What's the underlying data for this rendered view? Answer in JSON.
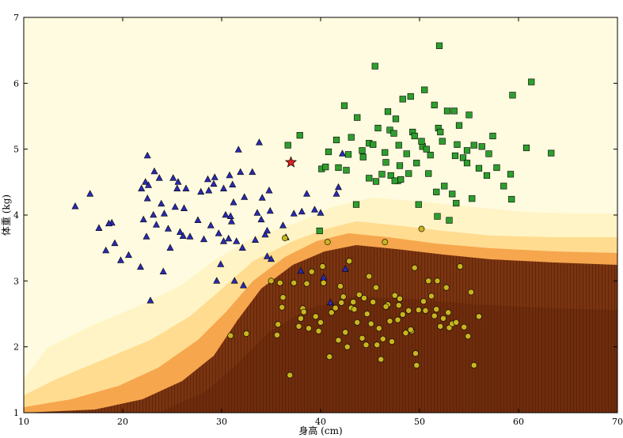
{
  "chart_data": {
    "type": "scatter",
    "title": "",
    "xlabel": "身高 (cm)",
    "ylabel": "体重 (kg)",
    "xlim": [
      10,
      70
    ],
    "ylim": [
      1,
      7
    ],
    "xticks": [
      "10",
      "20",
      "30",
      "40",
      "50",
      "60",
      "70"
    ],
    "yticks": [
      "1",
      "2",
      "3",
      "4",
      "5",
      "6",
      "7"
    ],
    "grid": false,
    "background": "decision-region heatmap: pale yellow (top-left) to dark brown (bottom-right)",
    "colors": {
      "triangle": "#2a2ab0",
      "square": "#2e9e2e",
      "circle": "#c8b420",
      "star": "#dd2222",
      "bg_light": "#fffbe0",
      "bg_dark": "#6b2a0a"
    },
    "series": [
      {
        "name": "triangle",
        "marker": "triangle",
        "points": [
          [
            15.2,
            4.13
          ],
          [
            16.7,
            4.32
          ],
          [
            17.6,
            3.8
          ],
          [
            18.3,
            3.46
          ],
          [
            18.9,
            3.88
          ],
          [
            19.2,
            3.57
          ],
          [
            19.8,
            3.31
          ],
          [
            21.8,
            3.21
          ],
          [
            21.9,
            4.4
          ],
          [
            22.1,
            3.93
          ],
          [
            22.3,
            4.5
          ],
          [
            22.5,
            4.9
          ],
          [
            22.5,
            4.25
          ],
          [
            22.4,
            3.67
          ],
          [
            22.6,
            4.45
          ],
          [
            23.2,
            4.66
          ],
          [
            23.1,
            4.0
          ],
          [
            23.7,
            4.56
          ],
          [
            23.4,
            3.85
          ],
          [
            24.2,
            4.02
          ],
          [
            24.6,
            3.79
          ],
          [
            24.8,
            3.5
          ],
          [
            25.3,
            4.12
          ],
          [
            25.5,
            4.4
          ],
          [
            25.6,
            4.5
          ],
          [
            25.8,
            3.74
          ],
          [
            26.1,
            3.68
          ],
          [
            26.4,
            4.4
          ],
          [
            26.8,
            3.67
          ],
          [
            27.6,
            3.92
          ],
          [
            27.9,
            4.35
          ],
          [
            28.2,
            3.63
          ],
          [
            28.6,
            4.54
          ],
          [
            28.9,
            3.84
          ],
          [
            29.2,
            4.47
          ],
          [
            29.7,
            3.72
          ],
          [
            29.9,
            3.25
          ],
          [
            29.5,
            3.0
          ],
          [
            30.2,
            4.4
          ],
          [
            30.4,
            4.0
          ],
          [
            30.7,
            3.64
          ],
          [
            30.8,
            4.6
          ],
          [
            31.0,
            3.9
          ],
          [
            31.1,
            4.46
          ],
          [
            31.3,
            3.0
          ],
          [
            31.5,
            3.6
          ],
          [
            31.7,
            4.99
          ],
          [
            31.9,
            4.65
          ],
          [
            32.3,
            4.27
          ],
          [
            32.1,
            3.5
          ],
          [
            33.1,
            4.65
          ],
          [
            33.4,
            3.62
          ],
          [
            33.6,
            4.03
          ],
          [
            33.8,
            5.1
          ],
          [
            34.1,
            4.26
          ],
          [
            34.4,
            3.7
          ],
          [
            34.6,
            3.37
          ],
          [
            34.8,
            4.37
          ],
          [
            34.9,
            4.06
          ],
          [
            35.0,
            3.33
          ],
          [
            36.2,
            3.84
          ],
          [
            36.5,
            3.66
          ],
          [
            37.3,
            4.02
          ],
          [
            38.1,
            4.05
          ],
          [
            38.6,
            4.32
          ],
          [
            39.4,
            4.08
          ],
          [
            40.0,
            4.03
          ],
          [
            40.3,
            3.05
          ],
          [
            41.0,
            2.67
          ],
          [
            41.6,
            4.32
          ],
          [
            41.8,
            4.42
          ],
          [
            42.2,
            4.93
          ],
          [
            42.5,
            3.18
          ],
          [
            30.9,
            3.98
          ],
          [
            29.3,
            4.57
          ],
          [
            25.1,
            4.56
          ],
          [
            38.0,
            3.15
          ],
          [
            23.9,
            4.17
          ],
          [
            34.6,
            3.76
          ],
          [
            31.2,
            4.19
          ],
          [
            32.2,
            2.93
          ],
          [
            26.2,
            4.1
          ],
          [
            28.7,
            4.37
          ],
          [
            22.8,
            2.7
          ],
          [
            20.6,
            3.39
          ],
          [
            24.1,
            3.14
          ],
          [
            18.6,
            3.87
          ],
          [
            30.2,
            3.6
          ],
          [
            34.0,
            3.93
          ]
        ]
      },
      {
        "name": "square",
        "marker": "square",
        "points": [
          [
            36.7,
            5.06
          ],
          [
            37.9,
            5.21
          ],
          [
            39.9,
            3.76
          ],
          [
            40.1,
            4.7
          ],
          [
            40.5,
            4.73
          ],
          [
            40.8,
            4.96
          ],
          [
            41.6,
            5.14
          ],
          [
            41.8,
            4.72
          ],
          [
            42.4,
            5.66
          ],
          [
            42.6,
            4.68
          ],
          [
            42.8,
            4.92
          ],
          [
            43.1,
            5.18
          ],
          [
            43.6,
            4.16
          ],
          [
            44.2,
            4.98
          ],
          [
            44.3,
            4.88
          ],
          [
            44.9,
            4.56
          ],
          [
            44.9,
            5.09
          ],
          [
            45.3,
            5.07
          ],
          [
            45.5,
            6.26
          ],
          [
            45.6,
            4.51
          ],
          [
            45.8,
            5.32
          ],
          [
            46.2,
            4.62
          ],
          [
            46.6,
            4.8
          ],
          [
            46.8,
            5.57
          ],
          [
            47.0,
            5.29
          ],
          [
            47.1,
            4.6
          ],
          [
            47.4,
            5.24
          ],
          [
            47.6,
            5.46
          ],
          [
            47.8,
            4.52
          ],
          [
            47.9,
            5.06
          ],
          [
            48.1,
            4.54
          ],
          [
            48.3,
            5.76
          ],
          [
            48.7,
            4.93
          ],
          [
            48.9,
            4.63
          ],
          [
            49.1,
            5.8
          ],
          [
            49.3,
            5.26
          ],
          [
            49.5,
            5.2
          ],
          [
            49.7,
            4.79
          ],
          [
            49.9,
            4.16
          ],
          [
            50.3,
            5.04
          ],
          [
            50.5,
            5.9
          ],
          [
            50.7,
            5.0
          ],
          [
            50.9,
            4.63
          ],
          [
            51.1,
            4.91
          ],
          [
            51.5,
            5.67
          ],
          [
            51.7,
            4.35
          ],
          [
            51.9,
            5.32
          ],
          [
            52.1,
            5.26
          ],
          [
            52.3,
            5.12
          ],
          [
            52.5,
            4.44
          ],
          [
            52.8,
            5.58
          ],
          [
            53.0,
            3.92
          ],
          [
            53.3,
            4.32
          ],
          [
            53.6,
            4.9
          ],
          [
            53.8,
            5.07
          ],
          [
            54.0,
            5.36
          ],
          [
            54.4,
            4.87
          ],
          [
            54.8,
            4.98
          ],
          [
            55.0,
            5.52
          ],
          [
            55.5,
            5.06
          ],
          [
            56.0,
            4.71
          ],
          [
            56.3,
            5.04
          ],
          [
            56.8,
            4.6
          ],
          [
            57.0,
            4.93
          ],
          [
            57.4,
            5.2
          ],
          [
            57.8,
            4.72
          ],
          [
            58.5,
            4.44
          ],
          [
            59.3,
            4.24
          ],
          [
            59.4,
            5.82
          ],
          [
            60.8,
            5.02
          ],
          [
            61.3,
            6.02
          ],
          [
            63.3,
            4.94
          ],
          [
            52.0,
            6.57
          ],
          [
            51.8,
            3.98
          ],
          [
            53.5,
            5.58
          ],
          [
            55.3,
            4.25
          ],
          [
            50.2,
            5.12
          ],
          [
            47.5,
            4.52
          ],
          [
            43.7,
            5.48
          ],
          [
            54.8,
            4.79
          ],
          [
            59.2,
            4.62
          ],
          [
            46.5,
            4.95
          ],
          [
            48.0,
            4.75
          ],
          [
            53.7,
            4.18
          ]
        ]
      },
      {
        "name": "circle",
        "marker": "circle",
        "points": [
          [
            30.9,
            2.17
          ],
          [
            32.5,
            2.2
          ],
          [
            35.0,
            3.0
          ],
          [
            35.6,
            2.18
          ],
          [
            35.7,
            2.34
          ],
          [
            35.9,
            2.97
          ],
          [
            36.1,
            2.6
          ],
          [
            36.2,
            2.75
          ],
          [
            36.4,
            3.65
          ],
          [
            36.9,
            1.57
          ],
          [
            37.8,
            2.31
          ],
          [
            38.0,
            2.43
          ],
          [
            38.2,
            2.58
          ],
          [
            38.6,
            2.96
          ],
          [
            38.8,
            2.28
          ],
          [
            39.1,
            3.14
          ],
          [
            39.5,
            2.46
          ],
          [
            39.8,
            2.24
          ],
          [
            40.0,
            2.37
          ],
          [
            40.3,
            2.97
          ],
          [
            40.7,
            3.59
          ],
          [
            40.9,
            1.85
          ],
          [
            41.1,
            2.52
          ],
          [
            41.5,
            2.59
          ],
          [
            41.8,
            2.1
          ],
          [
            42.1,
            2.67
          ],
          [
            42.3,
            2.76
          ],
          [
            42.5,
            2.22
          ],
          [
            42.7,
            2.0
          ],
          [
            42.9,
            3.3
          ],
          [
            43.1,
            2.59
          ],
          [
            43.4,
            2.57
          ],
          [
            43.7,
            2.37
          ],
          [
            43.9,
            2.79
          ],
          [
            44.2,
            2.13
          ],
          [
            44.4,
            2.74
          ],
          [
            44.6,
            2.03
          ],
          [
            44.9,
            3.07
          ],
          [
            45.1,
            2.35
          ],
          [
            45.3,
            2.68
          ],
          [
            45.6,
            2.9
          ],
          [
            45.9,
            2.28
          ],
          [
            46.1,
            1.81
          ],
          [
            46.3,
            2.12
          ],
          [
            46.5,
            3.59
          ],
          [
            46.8,
            2.64
          ],
          [
            47.0,
            2.39
          ],
          [
            47.2,
            2.08
          ],
          [
            47.5,
            2.78
          ],
          [
            47.8,
            2.41
          ],
          [
            48.0,
            2.73
          ],
          [
            48.3,
            2.49
          ],
          [
            48.6,
            2.21
          ],
          [
            48.9,
            2.55
          ],
          [
            49.2,
            2.24
          ],
          [
            49.5,
            3.2
          ],
          [
            49.7,
            1.72
          ],
          [
            49.9,
            2.56
          ],
          [
            50.2,
            3.79
          ],
          [
            50.4,
            2.69
          ],
          [
            50.6,
            2.55
          ],
          [
            50.9,
            3.0
          ],
          [
            51.2,
            2.77
          ],
          [
            51.5,
            2.47
          ],
          [
            51.8,
            3.0
          ],
          [
            52.1,
            2.31
          ],
          [
            52.4,
            2.43
          ],
          [
            52.7,
            2.9
          ],
          [
            53.0,
            2.29
          ],
          [
            53.3,
            2.35
          ],
          [
            53.7,
            2.37
          ],
          [
            54.1,
            3.22
          ],
          [
            54.5,
            2.3
          ],
          [
            54.9,
            2.16
          ],
          [
            55.2,
            2.83
          ],
          [
            55.5,
            1.72
          ],
          [
            56.0,
            2.46
          ],
          [
            49.6,
            1.9
          ],
          [
            38.3,
            2.53
          ],
          [
            44.7,
            2.5
          ],
          [
            47.9,
            2.63
          ],
          [
            42.0,
            2.92
          ],
          [
            45.7,
            2.03
          ],
          [
            52.9,
            2.52
          ],
          [
            40.2,
            3.22
          ],
          [
            43.3,
            2.68
          ],
          [
            46.6,
            2.61
          ],
          [
            49.1,
            2.26
          ],
          [
            51.7,
            2.57
          ],
          [
            37.3,
            2.97
          ]
        ]
      },
      {
        "name": "star",
        "marker": "star",
        "points": [
          [
            37.0,
            4.8
          ]
        ]
      }
    ]
  }
}
